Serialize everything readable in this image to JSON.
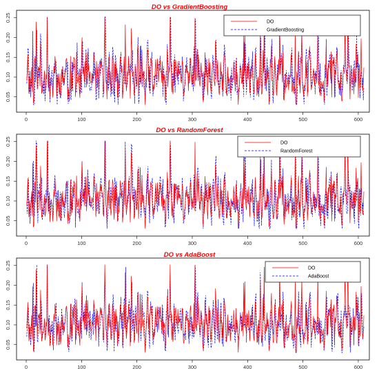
{
  "chart_data": [
    {
      "type": "line",
      "title": "DO vs GradientBoosting",
      "xlabel": "",
      "ylabel": "",
      "xlim": [
        0,
        610
      ],
      "ylim": [
        0.02,
        0.26
      ],
      "xticks": [
        0,
        100,
        200,
        300,
        400,
        500,
        600
      ],
      "yticks": [
        0.05,
        0.1,
        0.15,
        0.2,
        0.25
      ],
      "ytick_labels": [
        "0.05",
        "0.10",
        "0.15",
        "0.20",
        "0.25"
      ],
      "legend_position": "top-right",
      "series": [
        {
          "name": "DO",
          "color": "#ff0000",
          "style": "solid",
          "seed": 11
        },
        {
          "name": "GradientBoosting",
          "color": "#0000ff",
          "style": "dashed",
          "seed": 23
        }
      ]
    },
    {
      "type": "line",
      "title": "DO vs RandomForest",
      "xlabel": "",
      "ylabel": "",
      "xlim": [
        0,
        610
      ],
      "ylim": [
        0.02,
        0.26
      ],
      "xticks": [
        0,
        100,
        200,
        300,
        400,
        500,
        600
      ],
      "yticks": [
        0.05,
        0.1,
        0.15,
        0.2,
        0.25
      ],
      "ytick_labels": [
        "0.05",
        "0.10",
        "0.15",
        "0.20",
        "0.25"
      ],
      "legend_position": "top-right",
      "series": [
        {
          "name": "DO",
          "color": "#ff0000",
          "style": "solid",
          "seed": 11
        },
        {
          "name": "RandomForest",
          "color": "#0000ff",
          "style": "dashed",
          "seed": 37
        }
      ]
    },
    {
      "type": "line",
      "title": "DO vs AdaBoost",
      "xlabel": "",
      "ylabel": "",
      "xlim": [
        0,
        610
      ],
      "ylim": [
        0.02,
        0.26
      ],
      "xticks": [
        0,
        100,
        200,
        300,
        400,
        500,
        600
      ],
      "yticks": [
        0.05,
        0.1,
        0.15,
        0.2,
        0.25
      ],
      "ytick_labels": [
        "0.05",
        "0.10",
        "0.15",
        "0.20",
        "0.25"
      ],
      "legend_position": "top-right",
      "series": [
        {
          "name": "DO",
          "color": "#ff0000",
          "style": "solid",
          "seed": 11
        },
        {
          "name": "AdaBoost",
          "color": "#0000ff",
          "style": "dashed",
          "seed": 53
        }
      ]
    }
  ]
}
